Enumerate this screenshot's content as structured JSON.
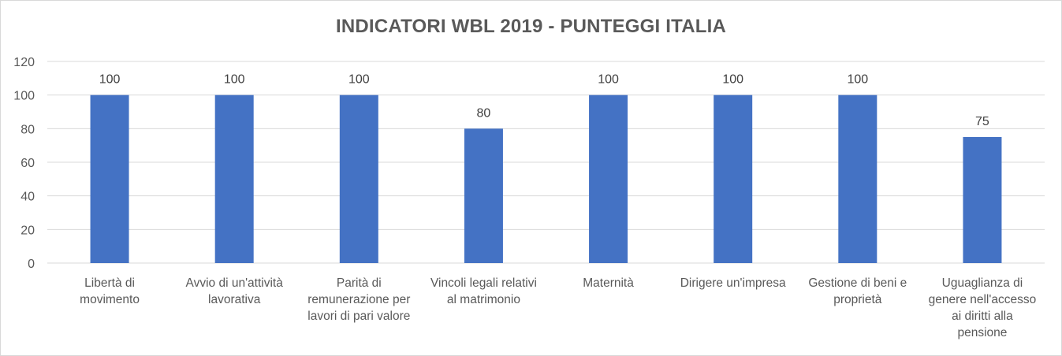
{
  "chart_data": {
    "type": "bar",
    "title": "INDICATORI WBL 2019 - PUNTEGGI ITALIA",
    "categories": [
      [
        "Libertà di",
        "movimento"
      ],
      [
        "Avvio di un'attività",
        "lavorativa"
      ],
      [
        "Parità di",
        "remunerazione per",
        "lavori di pari valore"
      ],
      [
        "Vincoli legali relativi",
        "al matrimonio"
      ],
      [
        "Maternità"
      ],
      [
        "Dirigere un'impresa"
      ],
      [
        "Gestione di beni e",
        "proprietà"
      ],
      [
        "Uguaglianza di",
        "genere nell'accesso",
        "ai diritti alla",
        "pensione"
      ]
    ],
    "values": [
      100,
      100,
      100,
      80,
      100,
      100,
      100,
      75
    ],
    "data_labels": [
      "100",
      "100",
      "100",
      "80",
      "100",
      "100",
      "100",
      "75"
    ],
    "ylim": [
      0,
      120
    ],
    "yticks": [
      0,
      20,
      40,
      60,
      80,
      100,
      120
    ],
    "xlabel": "",
    "ylabel": "",
    "grid": true,
    "legend": "none",
    "bar_color": "#4472C4",
    "grid_color": "#d9d9d9"
  }
}
